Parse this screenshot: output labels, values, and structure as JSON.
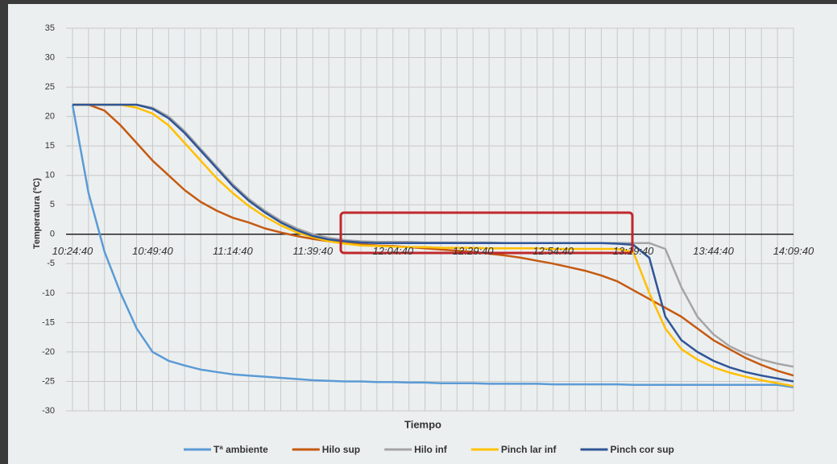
{
  "chart_data": {
    "type": "line",
    "xlabel": "Tiempo",
    "ylabel": "Temperatura (ºC)",
    "x": [
      "10:24:40",
      null,
      null,
      null,
      null,
      "10:49:40",
      null,
      null,
      null,
      null,
      "11:14:40",
      null,
      null,
      null,
      null,
      "11:39:40",
      null,
      null,
      null,
      null,
      "12:04:40",
      null,
      null,
      null,
      null,
      "12:29:40",
      null,
      null,
      null,
      null,
      "12:54:40",
      null,
      null,
      null,
      null,
      "13:19:40",
      null,
      null,
      null,
      null,
      "13:44:40",
      null,
      null,
      null,
      null,
      "14:09:40"
    ],
    "ylim": [
      -30,
      35
    ],
    "yticks": [
      -30,
      -25,
      -20,
      -15,
      -10,
      -5,
      0,
      5,
      10,
      15,
      20,
      25,
      30,
      35
    ],
    "grid": true,
    "legend": "bottom",
    "series": [
      {
        "name": "Tª ambiente",
        "color": "#5b9bd5",
        "values": [
          22,
          7,
          -3,
          -10,
          -16,
          -20,
          -21.5,
          -22.3,
          -23,
          -23.4,
          -23.8,
          -24,
          -24.2,
          -24.4,
          -24.6,
          -24.8,
          -24.9,
          -25,
          -25,
          -25.1,
          -25.1,
          -25.2,
          -25.2,
          -25.3,
          -25.3,
          -25.3,
          -25.4,
          -25.4,
          -25.4,
          -25.4,
          -25.5,
          -25.5,
          -25.5,
          -25.5,
          -25.5,
          -25.6,
          -25.6,
          -25.6,
          -25.6,
          -25.6,
          -25.6,
          -25.6,
          -25.6,
          -25.6,
          -25.6,
          -26
        ]
      },
      {
        "name": "Hilo sup",
        "color": "#c55a11",
        "values": [
          22,
          22,
          21,
          18.5,
          15.5,
          12.5,
          10,
          7.5,
          5.5,
          4,
          2.8,
          2,
          1,
          0.3,
          -0.3,
          -0.8,
          -1.2,
          -1.5,
          -1.7,
          -1.9,
          -2,
          -2.2,
          -2.4,
          -2.6,
          -2.8,
          -3,
          -3.3,
          -3.6,
          -4,
          -4.5,
          -5,
          -5.6,
          -6.2,
          -7,
          -8,
          -9.5,
          -11,
          -12.5,
          -14,
          -16,
          -18,
          -19.5,
          -21,
          -22.2,
          -23.2,
          -24
        ]
      },
      {
        "name": "Hilo inf",
        "color": "#a5a5a5",
        "values": [
          22,
          22,
          22,
          22,
          22,
          21.5,
          20,
          17.5,
          14.5,
          11.5,
          8.5,
          6,
          4,
          2.3,
          1,
          0,
          -0.6,
          -1,
          -1.2,
          -1.3,
          -1.3,
          -1.3,
          -1.4,
          -1.4,
          -1.4,
          -1.4,
          -1.4,
          -1.5,
          -1.5,
          -1.5,
          -1.5,
          -1.5,
          -1.5,
          -1.5,
          -1.5,
          -1.5,
          -1.5,
          -2.5,
          -9,
          -14,
          -17,
          -19,
          -20.3,
          -21.3,
          -22,
          -22.5
        ]
      },
      {
        "name": "Pinch lar inf",
        "color": "#ffc000",
        "values": [
          22,
          22,
          22,
          22,
          21.5,
          20.5,
          18.5,
          15.5,
          12.5,
          9.5,
          7,
          4.8,
          3,
          1.5,
          0.3,
          -0.5,
          -1.2,
          -1.6,
          -1.9,
          -2,
          -2.1,
          -2.2,
          -2.2,
          -2.3,
          -2.3,
          -2.3,
          -2.4,
          -2.4,
          -2.4,
          -2.4,
          -2.5,
          -2.5,
          -2.5,
          -2.5,
          -2.5,
          -3,
          -10,
          -16,
          -19.5,
          -21.3,
          -22.6,
          -23.5,
          -24.2,
          -24.8,
          -25.3,
          -25.8
        ]
      },
      {
        "name": "Pinch cor sup",
        "color": "#2f5597",
        "values": [
          22,
          22,
          22,
          22,
          22,
          21.3,
          19.7,
          17.2,
          14.2,
          11.2,
          8.2,
          5.7,
          3.7,
          2,
          0.7,
          -0.3,
          -0.9,
          -1.2,
          -1.4,
          -1.5,
          -1.5,
          -1.5,
          -1.5,
          -1.5,
          -1.5,
          -1.5,
          -1.5,
          -1.5,
          -1.5,
          -1.5,
          -1.5,
          -1.5,
          -1.5,
          -1.5,
          -1.6,
          -1.8,
          -4,
          -14,
          -18,
          -20,
          -21.5,
          -22.6,
          -23.4,
          -24,
          -24.5,
          -25
        ]
      }
    ]
  }
}
